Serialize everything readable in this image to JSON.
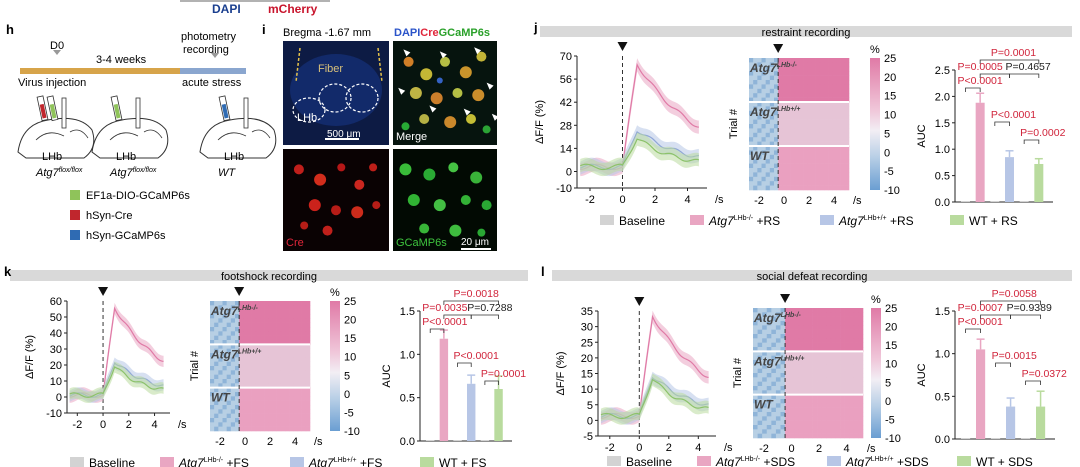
{
  "header": {
    "dapi": "DAPI",
    "mcherry": "mCherry",
    "dapi_color": "#1a3f8f",
    "mcherry_color": "#c8142c"
  },
  "h": {
    "letter": "h",
    "d0": "D0",
    "weeks": "3-4 weeks",
    "photometry": "photometry\nrecording",
    "virus": "Virus injection",
    "stress": "acute stress",
    "brains": [
      {
        "region": "LHb",
        "label": "Atg7",
        "sup": "flox/flox"
      },
      {
        "region": "LHb",
        "label": "Atg7",
        "sup": "flox/flox"
      },
      {
        "region": "LHb",
        "label": "WT",
        "sup": ""
      }
    ],
    "legend": [
      {
        "label": "EF1a-DIO-GCaMP6s",
        "color": "#8fc35a"
      },
      {
        "label": "hSyn-Cre",
        "color": "#c0262d"
      },
      {
        "label": "hSyn-GCaMP6s",
        "color": "#2f6bb3"
      }
    ]
  },
  "i": {
    "letter": "i",
    "bregma": "Bregma -1.67 mm",
    "title_dapi": "DAPI",
    "title_cre": "Cre",
    "title_gcamp": "GCaMP6s",
    "fiber": "Fiber",
    "lhb": "LHb",
    "scale1": "500 μm",
    "merge": "Merge",
    "cre": "Cre",
    "gcamp": "GCaMP6s",
    "scale2": "20 μm"
  },
  "panels": [
    {
      "letter": "j",
      "title": "restraint recording",
      "trace": {
        "yticks": [
          -10,
          0,
          14,
          28,
          42,
          56,
          70
        ],
        "ymin": -10,
        "ymax": 70,
        "xticks": [
          -2,
          0,
          2,
          4
        ],
        "xlabel": "/s",
        "ylabel": "ΔF/F (%)"
      },
      "heatmap": {
        "labels": [
          "Atg7",
          "Atg7",
          "WT"
        ],
        "sups": [
          "LHb-/-",
          "LHb+/+",
          ""
        ],
        "ylabel": "Trial #",
        "xticks": [
          -2,
          0,
          2,
          4
        ],
        "xlabel": "/s",
        "cbar_ticks": [
          25,
          20,
          15,
          10,
          5,
          0,
          -5,
          -10
        ],
        "cbar_unit": "%"
      },
      "bars": {
        "yticks": [
          "0.0",
          "0.5",
          "1.0",
          "1.5",
          "2.0",
          "2.5"
        ],
        "ymax": 2.5,
        "ylabel": "AUC",
        "values": [
          0.0,
          1.88,
          0.0,
          0.85,
          0.0,
          0.72
        ],
        "errors": [
          0,
          0.18,
          0,
          0.12,
          0,
          0.1
        ],
        "pvals": [
          {
            "text": "P<0.0001",
            "red": true
          },
          {
            "text": "P=0.0005",
            "red": true
          },
          {
            "text": "P=0.0001",
            "red": true
          },
          {
            "text": "P=0.4657",
            "red": false
          },
          {
            "text": "P<0.0001",
            "red": true
          },
          {
            "text": "P=0.0002",
            "red": true
          }
        ]
      },
      "legend": [
        "Baseline",
        "Atg7",
        "+RS",
        "Atg7",
        "+RS",
        "WT + RS"
      ],
      "legend_sups": [
        "",
        "LHb-/-",
        "",
        "LHb+/+",
        "",
        ""
      ]
    },
    {
      "letter": "k",
      "title": "footshock recording",
      "trace": {
        "yticks": [
          -10,
          0,
          10,
          20,
          30,
          40,
          50,
          60
        ],
        "ymin": -10,
        "ymax": 60,
        "xticks": [
          -2,
          0,
          2,
          4
        ],
        "xlabel": "/s",
        "ylabel": "ΔF/F (%)"
      },
      "heatmap": {
        "labels": [
          "Atg7",
          "Atg7",
          "WT"
        ],
        "sups": [
          "LHb-/-",
          "LHb+/+",
          ""
        ],
        "ylabel": "Trial #",
        "xticks": [
          -2,
          0,
          2,
          4
        ],
        "xlabel": "/s",
        "cbar_ticks": [
          25,
          20,
          15,
          10,
          5,
          0,
          -5,
          -10
        ],
        "cbar_unit": "%"
      },
      "bars": {
        "yticks": [
          "0.0",
          "0.5",
          "1.0",
          "1.5"
        ],
        "ymax": 1.5,
        "ylabel": "AUC",
        "values": [
          0.0,
          1.18,
          0.0,
          0.66,
          0.0,
          0.6
        ],
        "errors": [
          0,
          0.1,
          0,
          0.1,
          0,
          0.15
        ],
        "pvals": [
          {
            "text": "P<0.0001",
            "red": true
          },
          {
            "text": "P=0.0035",
            "red": true
          },
          {
            "text": "P=0.0018",
            "red": true
          },
          {
            "text": "P=0.7288",
            "red": false
          },
          {
            "text": "P<0.0001",
            "red": true
          },
          {
            "text": "P=0.0001",
            "red": true
          }
        ]
      },
      "legend": [
        "Baseline",
        "Atg7",
        "+FS",
        "Atg7",
        "+FS",
        "WT + FS"
      ],
      "legend_sups": [
        "",
        "LHb-/-",
        "",
        "LHb+/+",
        "",
        ""
      ]
    },
    {
      "letter": "l",
      "title": "social defeat recording",
      "trace": {
        "yticks": [
          -5,
          0,
          5,
          10,
          15,
          20,
          25,
          30,
          35
        ],
        "ymin": -5,
        "ymax": 35,
        "xticks": [
          -2,
          0,
          2,
          4
        ],
        "xlabel": "/s",
        "ylabel": "ΔF/F (%)"
      },
      "heatmap": {
        "labels": [
          "Atg7",
          "Atg7",
          "WT"
        ],
        "sups": [
          "LHb-/-",
          "LHb+/+",
          ""
        ],
        "ylabel": "Trial #",
        "xticks": [
          -2,
          0,
          2,
          4
        ],
        "xlabel": "/s",
        "cbar_ticks": [
          25,
          20,
          15,
          10,
          5,
          0,
          -5,
          -10
        ],
        "cbar_unit": "%"
      },
      "bars": {
        "yticks": [
          "0.0",
          "0.5",
          "1.0",
          "1.5"
        ],
        "ymax": 1.5,
        "ylabel": "AUC",
        "values": [
          0.0,
          1.05,
          0.0,
          0.38,
          0.0,
          0.38
        ],
        "errors": [
          0,
          0.12,
          0,
          0.1,
          0,
          0.18
        ],
        "pvals": [
          {
            "text": "P<0.0001",
            "red": true
          },
          {
            "text": "P=0.0007",
            "red": true
          },
          {
            "text": "P=0.0058",
            "red": true
          },
          {
            "text": "P=0.9389",
            "red": false
          },
          {
            "text": "P=0.0015",
            "red": true
          },
          {
            "text": "P=0.0372",
            "red": true
          }
        ]
      },
      "legend": [
        "Baseline",
        "Atg7",
        "+SDS",
        "Atg7",
        "+SDS",
        "WT + SDS"
      ],
      "legend_sups": [
        "",
        "LHb-/-",
        "",
        "LHb+/+",
        "",
        ""
      ]
    }
  ],
  "colors": {
    "baseline": "#d3d3d3",
    "ko": "#e9a6c2",
    "ko_line": "#e07aa6",
    "het": "#b7c6e6",
    "het_line": "#8fa6d6",
    "wt": "#b9db9e",
    "wt_line": "#8cc26a",
    "pred": "#d0243b",
    "titlebar": "#d9d9d9"
  }
}
